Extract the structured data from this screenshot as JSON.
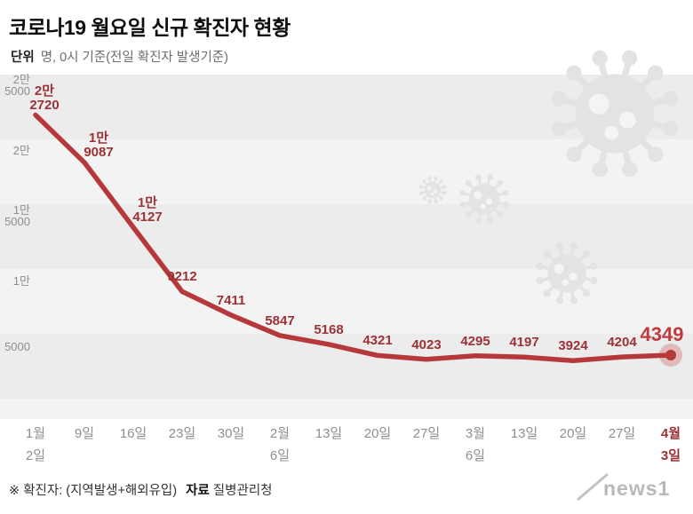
{
  "header": {
    "title": "코로나19 월요일 신규 확진자 현황",
    "unit_label": "단위",
    "unit_desc": "명, 0시 기준(전일 확진자 발생기준)"
  },
  "chart_data": {
    "type": "line",
    "title": "코로나19 월요일 신규 확진자 현황",
    "unit": "명",
    "xlabel": "",
    "ylabel": "",
    "ylim": [
      0,
      25000
    ],
    "grid": "striped-bands",
    "legend": "none",
    "categories": [
      [
        "1월",
        "2일"
      ],
      [
        "9일"
      ],
      [
        "16일"
      ],
      [
        "23일"
      ],
      [
        "30일"
      ],
      [
        "2월",
        "6일"
      ],
      [
        "13일"
      ],
      [
        "20일"
      ],
      [
        "27일"
      ],
      [
        "3월",
        "6일"
      ],
      [
        "13일"
      ],
      [
        "20일"
      ],
      [
        "27일"
      ],
      [
        "4월",
        "3일"
      ]
    ],
    "values": [
      22720,
      19087,
      14127,
      9212,
      7411,
      5847,
      5168,
      4321,
      4023,
      4295,
      4197,
      3924,
      4204,
      4349
    ],
    "value_labels": [
      [
        "2만",
        "2720"
      ],
      [
        "1만",
        "9087"
      ],
      [
        "1만",
        "4127"
      ],
      [
        "9212"
      ],
      [
        "7411"
      ],
      [
        "5847"
      ],
      [
        "5168"
      ],
      [
        "4321"
      ],
      [
        "4023"
      ],
      [
        "4295"
      ],
      [
        "4197"
      ],
      [
        "3924"
      ],
      [
        "4204"
      ],
      [
        "4349"
      ]
    ],
    "y_ticks": [
      {
        "lines": [
          "5000"
        ],
        "value": 5000
      },
      {
        "lines": [
          "1만"
        ],
        "value": 10000
      },
      {
        "lines": [
          "1만",
          "5000"
        ],
        "value": 15000
      },
      {
        "lines": [
          "2만"
        ],
        "value": 20000
      },
      {
        "lines": [
          "2만",
          "5000"
        ],
        "value": 25000
      }
    ],
    "highlight_index": 13,
    "line_color": "#b5383b",
    "label_color": "#9c3136",
    "highlight_color": "#c13a3e",
    "axis_color": "#8f8f8f",
    "decor_icon": "coronavirus-icon",
    "decor_color": "#e3e3e3"
  },
  "footer": {
    "note_prefix": "※ 확진자: (지역발생+해외유입)",
    "source_label": "자료",
    "source_value": "질병관리청",
    "logo": "news1"
  }
}
